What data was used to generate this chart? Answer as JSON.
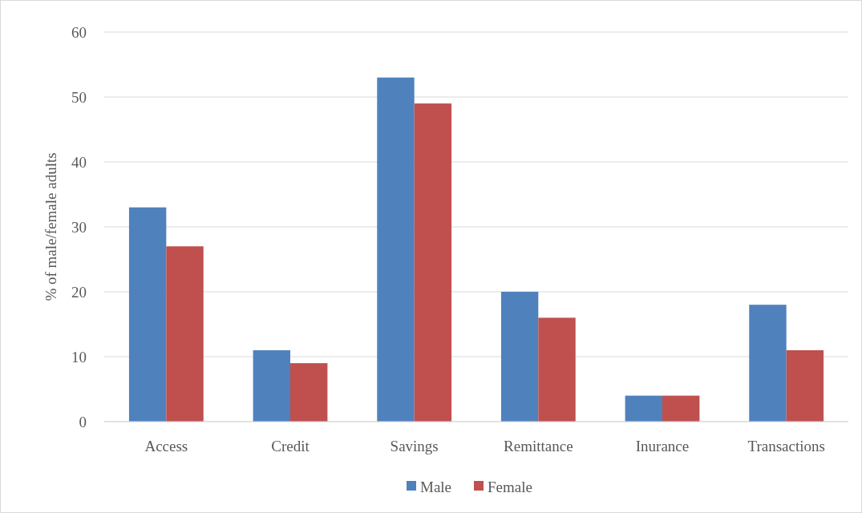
{
  "chart_data": {
    "type": "bar",
    "ylabel": "% of male/female adults",
    "categories": [
      "Access",
      "Credit",
      "Savings",
      "Remittance",
      "Inurance",
      "Transactions"
    ],
    "series": [
      {
        "name": "Male",
        "color": "#4f81bd",
        "values": [
          33,
          11,
          53,
          20,
          4,
          18
        ]
      },
      {
        "name": "Female",
        "color": "#c0504d",
        "values": [
          27,
          9,
          49,
          16,
          4,
          11
        ]
      }
    ],
    "ylim": [
      0,
      60
    ],
    "yticks": [
      0,
      10,
      20,
      30,
      40,
      50,
      60
    ],
    "grid": "y",
    "legend": "bottom"
  }
}
